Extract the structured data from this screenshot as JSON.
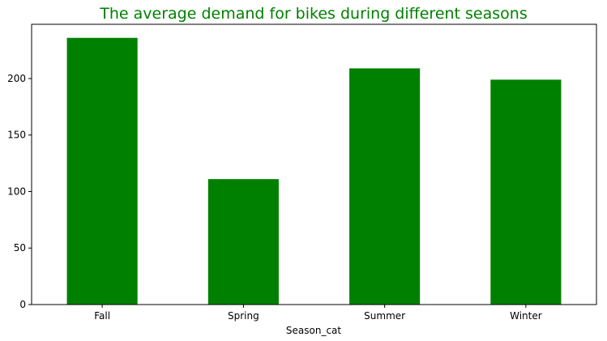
{
  "chart_data": {
    "type": "bar",
    "title": "The average demand for bikes during different seasons",
    "xlabel": "Season_cat",
    "ylabel": "",
    "categories": [
      "Fall",
      "Spring",
      "Summer",
      "Winter"
    ],
    "values": [
      236,
      111,
      209,
      199
    ],
    "ylim": [
      0,
      248
    ],
    "yticks": [
      0,
      50,
      100,
      150,
      200
    ],
    "grid": false,
    "legend": "none",
    "bar_color": "#008000",
    "title_color": "#008000"
  }
}
